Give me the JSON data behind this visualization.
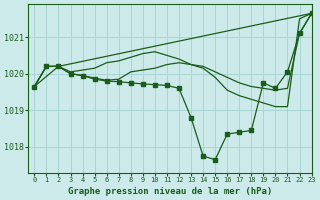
{
  "title": "Graphe pression niveau de la mer (hPa)",
  "background_color": "#cdeaea",
  "grid_color": "#a8d4d4",
  "line_color": "#1a5c1a",
  "xlim": [
    -0.5,
    23
  ],
  "ylim": [
    1017.3,
    1021.9
  ],
  "yticks": [
    1018,
    1019,
    1020,
    1021
  ],
  "xticks": [
    0,
    1,
    2,
    3,
    4,
    5,
    6,
    7,
    8,
    9,
    10,
    11,
    12,
    13,
    14,
    15,
    16,
    17,
    18,
    19,
    20,
    21,
    22,
    23
  ],
  "series": [
    {
      "x": [
        0,
        1,
        2,
        3,
        4,
        5,
        6,
        7,
        8,
        9,
        10,
        11,
        12,
        13,
        14,
        15,
        16,
        17,
        18,
        19,
        20,
        21,
        22,
        23
      ],
      "y": [
        1019.65,
        1020.2,
        1020.2,
        1020.0,
        1019.95,
        1019.85,
        1019.8,
        1019.78,
        1019.75,
        1019.72,
        1019.7,
        1019.68,
        1019.6,
        1018.8,
        1017.75,
        1017.65,
        1018.35,
        1018.4,
        1018.45,
        1019.75,
        1019.6,
        1020.05,
        1021.1,
        1021.65
      ],
      "has_markers": true
    },
    {
      "x": [
        0,
        1,
        2,
        3,
        4,
        5,
        6,
        7,
        8,
        9,
        10,
        11,
        12,
        13,
        14,
        15,
        16,
        17,
        18,
        19,
        20,
        21,
        22,
        23
      ],
      "y": [
        1019.65,
        1020.2,
        1020.2,
        1020.0,
        1019.95,
        1019.88,
        1019.82,
        1019.85,
        1020.05,
        1020.1,
        1020.15,
        1020.25,
        1020.3,
        1020.25,
        1020.2,
        1020.05,
        1019.9,
        1019.75,
        1019.65,
        1019.6,
        1019.55,
        1019.6,
        1021.1,
        1021.65
      ],
      "has_markers": false
    },
    {
      "x": [
        0,
        1,
        2,
        3,
        4,
        5,
        6,
        7,
        8,
        9,
        10,
        11,
        12,
        13,
        14,
        15,
        16,
        17,
        18,
        19,
        20,
        21,
        22,
        23
      ],
      "y": [
        1019.65,
        1020.2,
        1020.2,
        1020.05,
        1020.1,
        1020.15,
        1020.3,
        1020.35,
        1020.45,
        1020.55,
        1020.6,
        1020.5,
        1020.4,
        1020.25,
        1020.15,
        1019.9,
        1019.55,
        1019.4,
        1019.3,
        1019.2,
        1019.1,
        1019.1,
        1021.5,
        1021.65
      ],
      "has_markers": false
    },
    {
      "x": [
        0,
        2,
        23
      ],
      "y": [
        1019.65,
        1020.2,
        1021.65
      ],
      "has_markers": false
    }
  ]
}
